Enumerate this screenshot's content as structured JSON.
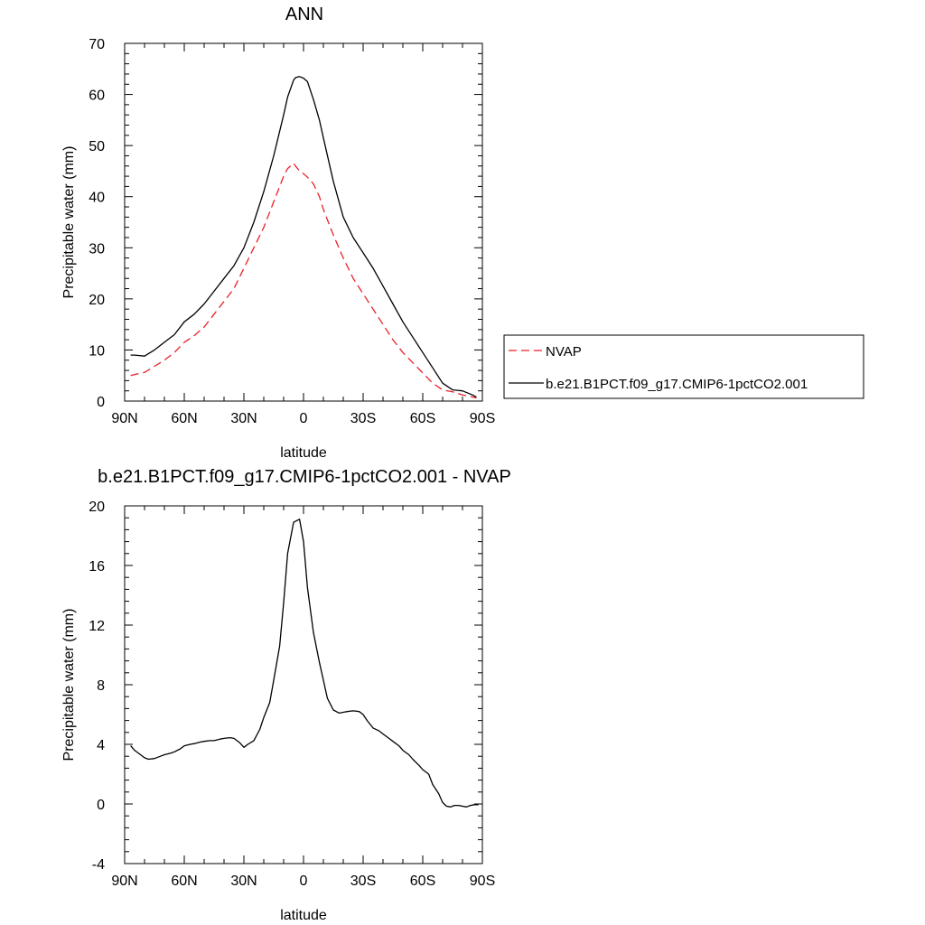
{
  "chart_data": [
    {
      "type": "line",
      "title": "ANN",
      "xlabel": "latitude",
      "ylabel": "Precipitable water (mm)",
      "xlim": [
        -90,
        90
      ],
      "ylim": [
        0,
        70
      ],
      "x_ticks": [
        -90,
        -60,
        -30,
        0,
        30,
        60,
        90
      ],
      "x_tick_labels": [
        "90N",
        "60N",
        "30N",
        "0",
        "30S",
        "60S",
        "90S"
      ],
      "y_ticks": [
        0,
        10,
        20,
        30,
        40,
        50,
        60,
        70
      ],
      "y_tick_labels": [
        "0",
        "10",
        "20",
        "30",
        "40",
        "50",
        "60",
        "70"
      ],
      "grid": false,
      "legend_placement": "right",
      "series": [
        {
          "name": "NVAP",
          "color": "#e8202a",
          "dash": true,
          "x": [
            -87,
            -85,
            -80,
            -75,
            -70,
            -65,
            -60,
            -55,
            -50,
            -45,
            -40,
            -35,
            -30,
            -25,
            -20,
            -15,
            -10,
            -8,
            -5,
            -4,
            -2,
            0,
            2,
            5,
            8,
            10,
            15,
            20,
            25,
            30,
            35,
            40,
            45,
            50,
            55,
            60,
            65,
            70,
            75,
            80,
            85,
            87
          ],
          "values": [
            5,
            5.2,
            5.6,
            6.8,
            8,
            9.5,
            11.5,
            12.8,
            14.5,
            17,
            19.5,
            22,
            26,
            30,
            34,
            39,
            44,
            45.5,
            46.5,
            46,
            45,
            44.5,
            43.8,
            42.5,
            40,
            37.5,
            32.5,
            28,
            24,
            21,
            18,
            15,
            12,
            9.5,
            7.5,
            5.5,
            3.5,
            2.2,
            1.8,
            1.2,
            0.8,
            0.6
          ]
        },
        {
          "name": "b.e21.B1PCT.f09_g17.CMIP6-1pctCO2.001",
          "color": "#000000",
          "dash": false,
          "x": [
            -87,
            -85,
            -80,
            -75,
            -70,
            -65,
            -60,
            -55,
            -50,
            -45,
            -40,
            -35,
            -30,
            -25,
            -20,
            -15,
            -10,
            -8,
            -5,
            -4,
            -2,
            0,
            2,
            5,
            8,
            10,
            15,
            20,
            25,
            30,
            35,
            40,
            45,
            50,
            55,
            60,
            65,
            70,
            75,
            80,
            85,
            87
          ],
          "values": [
            9,
            9,
            8.8,
            10,
            11.5,
            13,
            15.5,
            17,
            19,
            21.5,
            24,
            26.5,
            30,
            35,
            41,
            48,
            56,
            59.5,
            62.8,
            63.3,
            63.5,
            63.2,
            62.5,
            59,
            55,
            51.5,
            43,
            36,
            32,
            29,
            26,
            22.5,
            19,
            15.5,
            12.5,
            9.5,
            6.5,
            3.5,
            2.2,
            2,
            1.2,
            0.8
          ]
        }
      ]
    },
    {
      "type": "line",
      "title": "b.e21.B1PCT.f09_g17.CMIP6-1pctCO2.001 - NVAP",
      "xlabel": "latitude",
      "ylabel": "Precipitable water (mm)",
      "xlim": [
        -90,
        90
      ],
      "ylim": [
        -4,
        20
      ],
      "x_ticks": [
        -90,
        -60,
        -30,
        0,
        30,
        60,
        90
      ],
      "x_tick_labels": [
        "90N",
        "60N",
        "30N",
        "0",
        "30S",
        "60S",
        "90S"
      ],
      "y_ticks": [
        -4,
        0,
        4,
        8,
        12,
        16,
        20
      ],
      "y_tick_labels": [
        "-4",
        "0",
        "4",
        "8",
        "12",
        "16",
        "20"
      ],
      "grid": false,
      "series": [
        {
          "color": "#000000",
          "dash": false,
          "x": [
            -87,
            -85,
            -82,
            -80,
            -78,
            -75,
            -72,
            -70,
            -67,
            -65,
            -62,
            -60,
            -57,
            -55,
            -52,
            -50,
            -47,
            -45,
            -42,
            -40,
            -37,
            -35,
            -32,
            -30,
            -28,
            -25,
            -22,
            -20,
            -17,
            -15,
            -12,
            -10,
            -8,
            -5,
            -2,
            0,
            2,
            5,
            8,
            10,
            12,
            15,
            18,
            20,
            22,
            25,
            28,
            30,
            32,
            35,
            38,
            40,
            43,
            45,
            48,
            50,
            53,
            55,
            58,
            60,
            63,
            65,
            68,
            70,
            72,
            74,
            76,
            78,
            80,
            82,
            84,
            86,
            88
          ],
          "values": [
            3.9,
            3.6,
            3.3,
            3.1,
            3,
            3.05,
            3.2,
            3.3,
            3.4,
            3.5,
            3.7,
            3.9,
            4.0,
            4.05,
            4.15,
            4.2,
            4.25,
            4.25,
            4.35,
            4.4,
            4.45,
            4.4,
            4.1,
            3.8,
            4.0,
            4.25,
            5,
            5.8,
            6.8,
            8.3,
            10.6,
            13.5,
            16.8,
            18.9,
            19.1,
            17.6,
            14.5,
            11.5,
            9.5,
            8.3,
            7.1,
            6.3,
            6.1,
            6.15,
            6.2,
            6.25,
            6.2,
            6.0,
            5.6,
            5.1,
            4.9,
            4.7,
            4.4,
            4.2,
            3.9,
            3.6,
            3.3,
            3.0,
            2.6,
            2.3,
            2.0,
            1.3,
            0.7,
            0.1,
            -0.15,
            -0.2,
            -0.1,
            -0.1,
            -0.15,
            -0.2,
            -0.1,
            -0.05,
            -0.05
          ]
        }
      ]
    }
  ]
}
